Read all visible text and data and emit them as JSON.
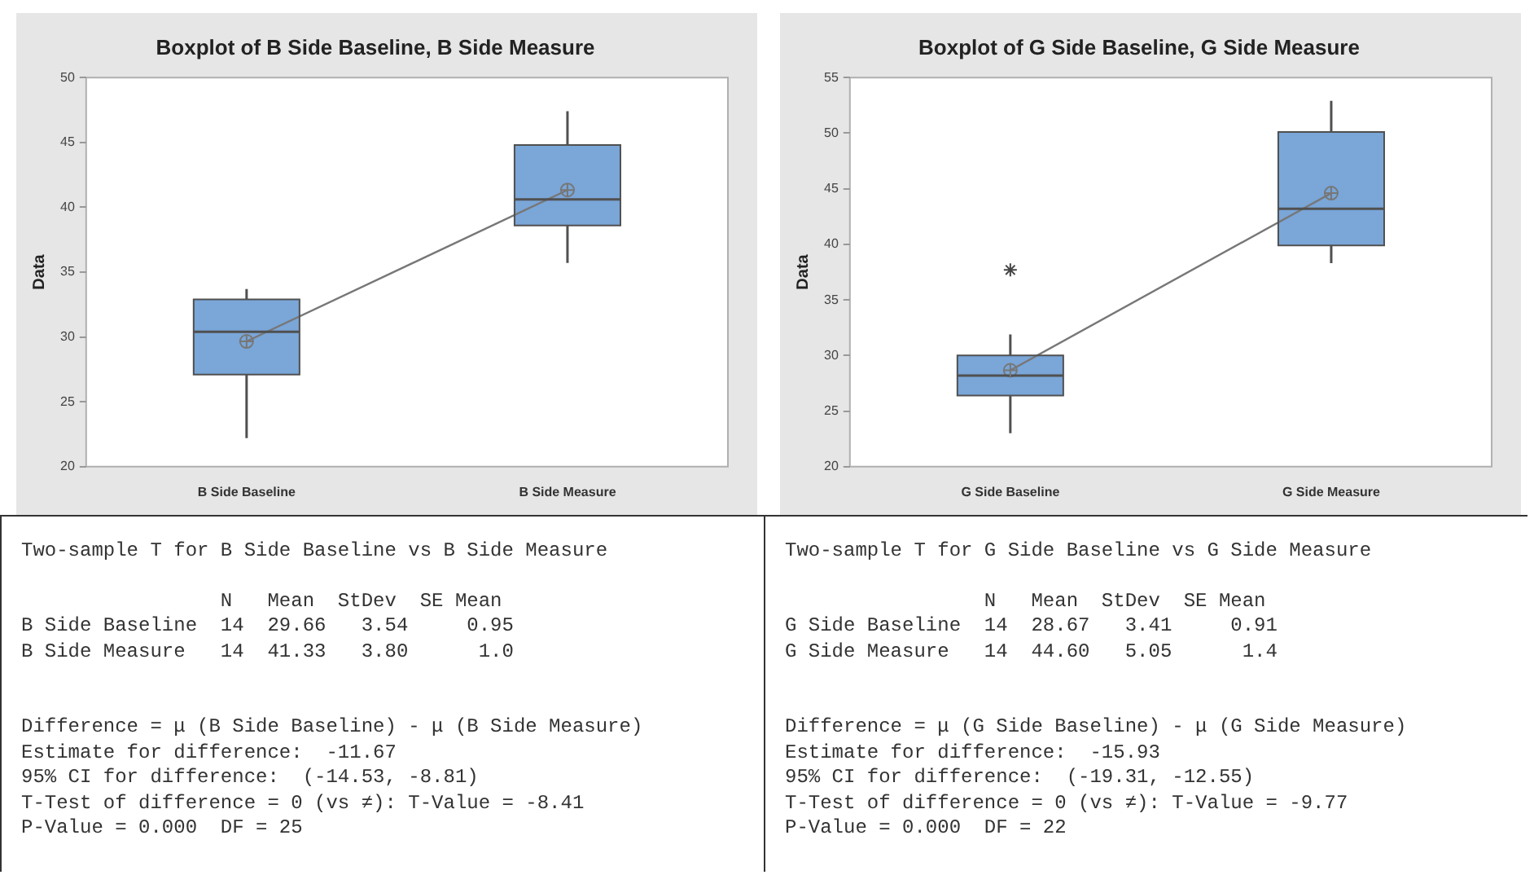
{
  "chart_data": [
    {
      "type": "box",
      "title": "Boxplot of B Side Baseline, B Side Measure",
      "ylabel": "Data",
      "categories": [
        "B Side Baseline",
        "B Side Measure"
      ],
      "color": "#7aa6d8",
      "ylim": [
        20,
        50
      ],
      "yticks": [
        20,
        25,
        30,
        35,
        40,
        45,
        50
      ],
      "boxes": [
        {
          "low": 22.2,
          "q1": 27.1,
          "median": 30.4,
          "q3": 32.9,
          "high": 33.7
        },
        {
          "low": 35.7,
          "q1": 38.6,
          "median": 40.6,
          "q3": 44.8,
          "high": 47.4
        }
      ],
      "series": [
        {
          "type": "line",
          "color": "#777777",
          "marker": "circle",
          "values": [
            29.66,
            41.33
          ]
        }
      ],
      "annotations": [
        "Two-sample T for B Side Baseline vs B Side Measure",
        "                 N   Mean  StDev  SE Mean",
        "B Side Baseline  14  29.66   3.54     0.95",
        "B Side Measure   14  41.33   3.80      1.0",
        "Difference = μ (B Side Baseline) - μ (B Side Measure)",
        "Estimate for difference:  -11.67",
        "95% CI for difference:  (-14.53, -8.81)",
        "T-Test of difference = 0 (vs ≠): T-Value = -8.41",
        "P-Value = 0.000  DF = 25"
      ]
    },
    {
      "type": "box",
      "title": "Boxplot of G Side Baseline, G Side Measure",
      "ylabel": "Data",
      "categories": [
        "G Side Baseline",
        "G Side Measure"
      ],
      "color": "#7aa6d8",
      "ylim": [
        20,
        55
      ],
      "yticks": [
        20,
        25,
        30,
        35,
        40,
        45,
        50,
        55
      ],
      "boxes": [
        {
          "low": 23,
          "q1": 26.4,
          "median": 28.2,
          "q3": 30,
          "high": 31.9,
          "outliers": [
            37.7
          ]
        },
        {
          "low": 38.3,
          "q1": 39.9,
          "median": 43.2,
          "q3": 50.1,
          "high": 52.9
        }
      ],
      "series": [
        {
          "type": "line",
          "color": "#777777",
          "marker": "circle",
          "values": [
            28.67,
            44.6
          ]
        }
      ],
      "annotations": [
        "Two-sample T for G Side Baseline vs G Side Measure",
        "                 N   Mean  StDev  SE Mean",
        "G Side Baseline  14  28.67   3.41     0.91",
        "G Side Measure   14  44.60   5.05      1.4",
        "Difference = μ (G Side Baseline) - μ (G Side Measure)",
        "Estimate for difference:  -15.93",
        "95% CI for difference:  (-19.31, -12.55)",
        "T-Test of difference = 0 (vs ≠): T-Value = -9.77",
        "P-Value = 0.000  DF = 22"
      ]
    }
  ]
}
